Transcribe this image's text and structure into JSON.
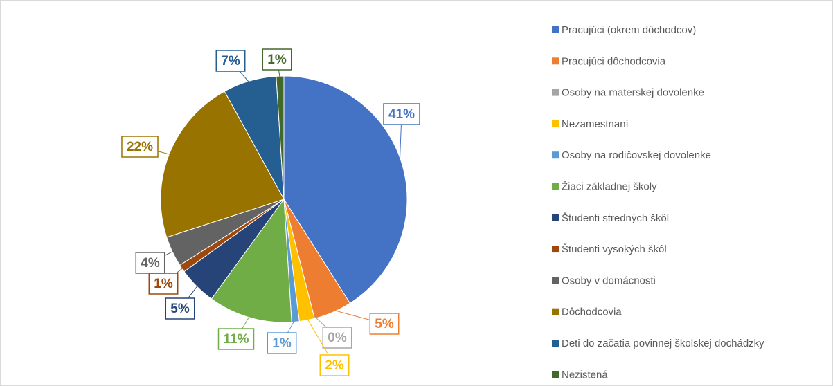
{
  "chart_data": {
    "type": "pie",
    "categories": [
      "Pracujúci (okrem dôchodcov)",
      "Pracujúci dôchodcovia",
      "Osoby na materskej dovolenke",
      "Nezamestnaní",
      "Osoby na rodičovskej dovolenke",
      "Žiaci základnej školy",
      "Študenti stredných škôl",
      "Študenti vysokých škôl",
      "Osoby v domácnosti",
      "Dôchodcovia",
      "Deti do začatia povinnej školskej dochádzky",
      "Nezistená"
    ],
    "values": [
      41,
      5,
      0,
      2,
      1,
      11,
      5,
      1,
      4,
      22,
      7,
      1
    ],
    "value_labels": [
      "41%",
      "5%",
      "0%",
      "2%",
      "1%",
      "11%",
      "5%",
      "1%",
      "4%",
      "22%",
      "7%",
      "1%"
    ],
    "colors": [
      "#4472c4",
      "#ed7d31",
      "#a5a5a5",
      "#ffc000",
      "#5b9bd5",
      "#70ad47",
      "#264478",
      "#9e480e",
      "#636363",
      "#997300",
      "#255e91",
      "#43682b"
    ],
    "legend": "right"
  }
}
